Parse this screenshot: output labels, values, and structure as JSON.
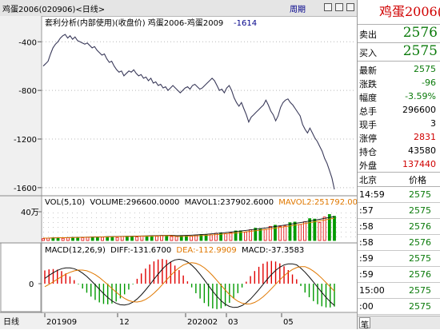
{
  "window": {
    "title": "鸡蛋2006(020906)<日线>",
    "period_label": "周期"
  },
  "chart": {
    "header": "套利分析(内部使用)(收盘价) 鸡蛋2006-鸡蛋2009",
    "header_value": "-1614",
    "price_axis": {
      "ticks": [
        -400,
        -800,
        -1200,
        -1600
      ],
      "labels": [
        "-400",
        "-800",
        "-1200",
        "-1600"
      ],
      "range": [
        -1660,
        -280
      ]
    },
    "x_labels": [
      "日线",
      "201909",
      "12",
      "202002",
      "03",
      "05"
    ],
    "volume": {
      "header_prefix": "VOL(5,10)",
      "vol_text": "VOLUME:296600.0000",
      "mavol1_text": "MAVOL1:237902.6000",
      "mavol2_text": "MAVOL2:251792.0000",
      "axis_label": "40万"
    },
    "macd": {
      "header_prefix": "MACD(12,26,9)",
      "diff_text": "DIFF:-131.6700",
      "dea_text": "DEA:-112.9909",
      "macd_text": "MACD:-37.3583",
      "zero_label": "0"
    },
    "colors": {
      "up": "#e00000",
      "down": "#009a00",
      "price_line": "#3a3a5a",
      "diff_line": "#111111",
      "dea_line": "#e07800",
      "mavol1": "#111111",
      "mavol2": "#e07800"
    }
  },
  "chart_data": {
    "type": "line",
    "title": "套利分析(内部使用)(收盘价) 鸡蛋2006-鸡蛋2009",
    "ylim": [
      -1660,
      -280
    ],
    "x_ticks": [
      "201909",
      "12",
      "202002",
      "03",
      "05"
    ],
    "y": [
      -600,
      -580,
      -560,
      -500,
      -450,
      -420,
      -400,
      -370,
      -350,
      -340,
      -370,
      -350,
      -380,
      -360,
      -390,
      -400,
      -410,
      -420,
      -410,
      -430,
      -450,
      -440,
      -470,
      -490,
      -510,
      -500,
      -540,
      -570,
      -560,
      -600,
      -630,
      -650,
      -640,
      -680,
      -660,
      -640,
      -650,
      -630,
      -660,
      -680,
      -670,
      -700,
      -690,
      -720,
      -700,
      -740,
      -730,
      -760,
      -750,
      -780,
      -770,
      -800,
      -780,
      -760,
      -780,
      -800,
      -820,
      -800,
      -780,
      -770,
      -790,
      -760,
      -750,
      -770,
      -790,
      -780,
      -760,
      -740,
      -720,
      -700,
      -720,
      -760,
      -800,
      -790,
      -820,
      -780,
      -760,
      -800,
      -860,
      -900,
      -930,
      -900,
      -950,
      -1000,
      -1060,
      -1020,
      -1000,
      -980,
      -960,
      -940,
      -920,
      -880,
      -920,
      -970,
      -1000,
      -1050,
      -1010,
      -940,
      -900,
      -880,
      -870,
      -900,
      -920,
      -950,
      -980,
      -1010,
      -1080,
      -1120,
      -1150,
      -1110,
      -1150,
      -1190,
      -1220,
      -1260,
      -1300,
      -1360,
      -1400,
      -1460,
      -1520,
      -1614
    ]
  },
  "quote": {
    "symbol_title": "鸡蛋2006(",
    "sell": {
      "label": "卖出",
      "value": "2576"
    },
    "buy": {
      "label": "买入",
      "value": "2575"
    },
    "rows": [
      {
        "label": "最新",
        "value": "2575",
        "color": "#0a7a0a"
      },
      {
        "label": "涨跌",
        "value": "-96",
        "color": "#0a7a0a"
      },
      {
        "label": "幅度",
        "value": "-3.59%",
        "color": "#0a7a0a"
      },
      {
        "label": "总手",
        "value": "296600",
        "color": "#000000"
      },
      {
        "label": "现手",
        "value": "3",
        "color": "#000000"
      },
      {
        "label": "涨停",
        "value": "2831",
        "color": "#d00000"
      },
      {
        "label": "持仓",
        "value": "43580",
        "color": "#000000"
      },
      {
        "label": "外盘",
        "value": "137440",
        "color": "#d00000"
      }
    ],
    "ticks_header": {
      "location": "北京",
      "price": "价格"
    },
    "ticks": [
      {
        "time": "14:59",
        "price": "2575"
      },
      {
        "time": ":57",
        "price": "2575"
      },
      {
        "time": ":58",
        "price": "2576"
      },
      {
        "time": ":58",
        "price": "2576"
      },
      {
        "time": ":59",
        "price": "2575"
      },
      {
        "time": ":59",
        "price": "2576"
      },
      {
        "time": "15:00",
        "price": "2575"
      },
      {
        "time": ":00",
        "price": "2575"
      }
    ],
    "footer_label": "笔"
  }
}
